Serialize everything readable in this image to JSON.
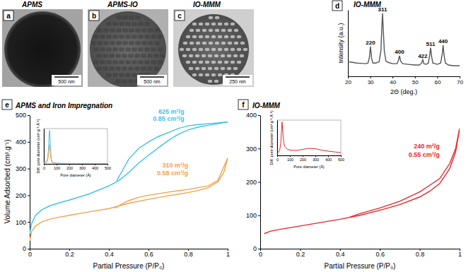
{
  "chart_data": [
    {
      "type": "line",
      "panel": "d",
      "title": "IO-MMM",
      "x_label": "2Θ (deg.)",
      "y_label": "Intensity (a.u.)",
      "xlim": [
        20,
        70
      ],
      "xticks": [
        20,
        30,
        40,
        50,
        60,
        70
      ],
      "ylim": [
        0,
        100
      ],
      "tick_labels": "x",
      "series": [
        {
          "color": "#555555",
          "x": [
            20,
            22,
            24,
            26,
            28,
            29,
            29.6,
            30.1,
            30.6,
            31.2,
            32.5,
            34,
            34.8,
            35.2,
            35.5,
            35.8,
            36.3,
            37,
            38,
            40,
            42,
            42.6,
            43.1,
            43.6,
            44.5,
            47,
            50,
            52,
            53,
            53.5,
            54,
            55,
            56,
            56.6,
            57,
            57.4,
            58,
            60,
            61.5,
            62.2,
            62.6,
            63,
            63.6,
            65,
            67,
            70
          ],
          "values": [
            22,
            21,
            20,
            19.5,
            19,
            20,
            28,
            45,
            27,
            20,
            20,
            22,
            40,
            75,
            95,
            72,
            38,
            23,
            21,
            19,
            19,
            24,
            31,
            23,
            19,
            18,
            17,
            17,
            20,
            25,
            19,
            18,
            20,
            32,
            43,
            31,
            20,
            18,
            20,
            33,
            47,
            33,
            20,
            17,
            16,
            16
          ]
        }
      ],
      "annotations": [
        {
          "text": "220",
          "x": 30.1,
          "y": 45
        },
        {
          "text": "311",
          "x": 35.5,
          "y": 95
        },
        {
          "text": "400",
          "x": 43.1,
          "y": 31
        },
        {
          "text": "422",
          "x": 53.5,
          "y": 25
        },
        {
          "text": "511",
          "x": 57,
          "y": 43
        },
        {
          "text": "440",
          "x": 62.6,
          "y": 47
        }
      ]
    },
    {
      "type": "line",
      "panel": "e",
      "title": "APMS and Iron Impregnation",
      "x_label": "Partial Pressure (P/P₀)",
      "y_label": "Volume Adsorbed (cm³.g⁻¹)",
      "xlim": [
        0,
        1
      ],
      "xticks": [
        0,
        0.2,
        0.4,
        0.6,
        0.8,
        1
      ],
      "ylim": [
        0,
        500
      ],
      "yticks": [
        0,
        100,
        200,
        300,
        400,
        500
      ],
      "series": [
        {
          "color": "#3cc3e6",
          "x": [
            0,
            0.01,
            0.03,
            0.06,
            0.1,
            0.15,
            0.2,
            0.3,
            0.4,
            0.45,
            0.5,
            0.55,
            0.6,
            0.65,
            0.7,
            0.75,
            0.8,
            0.85,
            0.9,
            0.95,
            1
          ],
          "values": [
            55,
            95,
            125,
            145,
            160,
            172,
            182,
            205,
            235,
            255,
            285,
            320,
            350,
            378,
            405,
            428,
            445,
            455,
            462,
            468,
            475
          ]
        },
        {
          "color": "#3cc3e6",
          "x": [
            1,
            0.95,
            0.9,
            0.85,
            0.8,
            0.75,
            0.7,
            0.65,
            0.6,
            0.55,
            0.5,
            0.47,
            0.44
          ],
          "values": [
            475,
            471,
            468,
            465,
            460,
            450,
            435,
            420,
            400,
            375,
            335,
            295,
            255
          ]
        },
        {
          "color": "#f5a14b",
          "x": [
            0,
            0.01,
            0.03,
            0.06,
            0.1,
            0.15,
            0.2,
            0.3,
            0.4,
            0.45,
            0.5,
            0.6,
            0.7,
            0.8,
            0.85,
            0.9,
            0.95,
            0.98,
            1
          ],
          "values": [
            30,
            65,
            85,
            100,
            110,
            118,
            125,
            138,
            150,
            160,
            170,
            185,
            198,
            210,
            218,
            228,
            250,
            285,
            340
          ]
        },
        {
          "color": "#f5a14b",
          "x": [
            1,
            0.95,
            0.9,
            0.8,
            0.7,
            0.6,
            0.55,
            0.5,
            0.46,
            0.43
          ],
          "values": [
            340,
            255,
            235,
            222,
            212,
            200,
            192,
            180,
            165,
            152
          ]
        }
      ],
      "annotations": [
        {
          "text": "625 m²/g",
          "x": 0.78,
          "y": 505,
          "color": "#3cc3e6"
        },
        {
          "text": "0.85 cm³/g",
          "x": 0.78,
          "y": 478,
          "color": "#3cc3e6"
        },
        {
          "text": "310 m²/g",
          "x": 0.8,
          "y": 305,
          "color": "#f5a14b"
        },
        {
          "text": "0.58 cm³/g",
          "x": 0.8,
          "y": 275,
          "color": "#f5a14b"
        }
      ],
      "inset": {
        "type": "line",
        "x_label": "Pore diameter (Å)",
        "y_label": "Diff. pore diameter (cm³.g⁻¹.Å⁻¹)",
        "xlim": [
          0,
          500
        ],
        "xticks": [
          0,
          100,
          200,
          300,
          400,
          500
        ],
        "ylim": [
          0,
          1
        ],
        "tick_labels": "x",
        "series": [
          {
            "color": "#3cc3e6",
            "x": [
              0,
              20,
              30,
              38,
              42,
              45,
              48,
              52,
              58,
              65,
              80,
              100,
              200,
              300,
              400,
              500
            ],
            "values": [
              0.02,
              0.05,
              0.15,
              0.5,
              0.85,
              0.95,
              0.8,
              0.45,
              0.15,
              0.06,
              0.03,
              0.02,
              0.01,
              0.01,
              0.01,
              0.01
            ]
          },
          {
            "color": "#f5a14b",
            "x": [
              0,
              20,
              30,
              38,
              42,
              45,
              48,
              52,
              58,
              65,
              80,
              100,
              200,
              300,
              400,
              500
            ],
            "values": [
              0.02,
              0.04,
              0.1,
              0.3,
              0.5,
              0.55,
              0.45,
              0.25,
              0.1,
              0.04,
              0.02,
              0.015,
              0.01,
              0.01,
              0.01,
              0.01
            ]
          }
        ]
      }
    },
    {
      "type": "line",
      "panel": "f",
      "title": "IO-MMM",
      "x_label": "Partial Pressure (P/P₀)",
      "xlim": [
        0,
        1
      ],
      "xticks": [
        0,
        0.2,
        0.4,
        0.6,
        0.8,
        1
      ],
      "ylim": [
        0,
        400
      ],
      "yticks": [
        0,
        100,
        200,
        300,
        400
      ],
      "series": [
        {
          "color": "#e8262b",
          "x": [
            0.02,
            0.05,
            0.1,
            0.2,
            0.3,
            0.4,
            0.5,
            0.6,
            0.7,
            0.8,
            0.85,
            0.9,
            0.95,
            0.98,
            1
          ],
          "values": [
            45,
            52,
            58,
            68,
            78,
            88,
            100,
            115,
            132,
            155,
            172,
            195,
            240,
            290,
            360
          ]
        },
        {
          "color": "#e8262b",
          "x": [
            1,
            0.98,
            0.95,
            0.9,
            0.85,
            0.8,
            0.7,
            0.6,
            0.5,
            0.45
          ],
          "values": [
            360,
            300,
            255,
            210,
            190,
            170,
            142,
            122,
            105,
            95
          ]
        }
      ],
      "annotations": [
        {
          "text": "240 m²/g",
          "x": 0.9,
          "y": 300,
          "color": "#e8262b"
        },
        {
          "text": "0.55 cm³/g",
          "x": 0.9,
          "y": 275,
          "color": "#e8262b"
        }
      ],
      "inset": {
        "type": "line",
        "x_label": "Pore diameter (Å)",
        "y_label": "Diff. pore diameter (cm³.g⁻¹.Å⁻¹)",
        "xlim": [
          0,
          500
        ],
        "xticks": [
          0,
          100,
          200,
          300,
          400,
          500
        ],
        "ylim": [
          0,
          1
        ],
        "tick_labels": "x",
        "series": [
          {
            "color": "#e8262b",
            "x": [
              0,
              20,
              28,
              34,
              38,
              42,
              46,
              52,
              60,
              80,
              100,
              150,
              200,
              250,
              300,
              350,
              400,
              500
            ],
            "values": [
              0.05,
              0.15,
              0.35,
              0.7,
              0.95,
              0.8,
              0.55,
              0.35,
              0.25,
              0.18,
              0.15,
              0.14,
              0.17,
              0.2,
              0.19,
              0.15,
              0.12,
              0.08
            ]
          }
        ]
      }
    }
  ],
  "images": [
    {
      "panel": "a",
      "title": "APMS",
      "scale_bar": "500 nm"
    },
    {
      "panel": "b",
      "title": "APMS-IO",
      "scale_bar": "500 nm"
    },
    {
      "panel": "c",
      "title": "IO-MMM",
      "scale_bar": "250 nm"
    }
  ]
}
